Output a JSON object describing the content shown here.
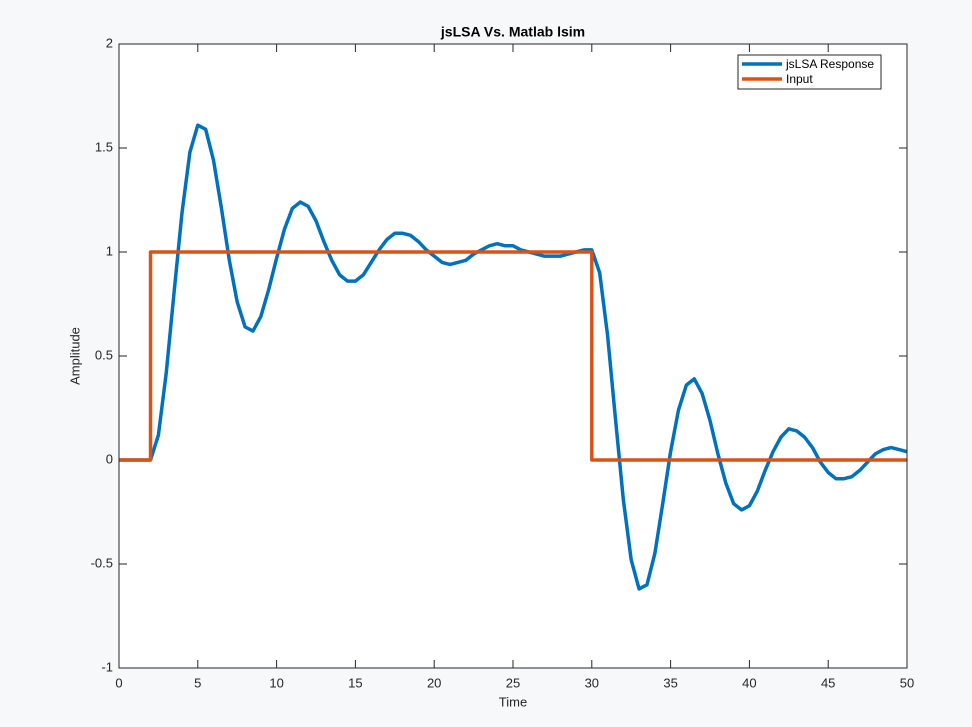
{
  "chart_data": {
    "type": "line",
    "title": "jsLSA Vs. Matlab lsim",
    "xlabel": "Time",
    "ylabel": "Amplitude",
    "xlim": [
      0,
      50
    ],
    "xticks": [
      0,
      5,
      10,
      15,
      20,
      25,
      30,
      35,
      40,
      45,
      50
    ],
    "ylim": [
      -1,
      2
    ],
    "yticks": [
      -1,
      -0.5,
      0,
      0.5,
      1,
      1.5,
      2
    ],
    "grid": false,
    "legend": "northeast",
    "series": [
      {
        "name": "jsLSA Response",
        "color": "#0072bd",
        "x": [
          0,
          0.5,
          1,
          1.5,
          2,
          2.5,
          3,
          3.5,
          4,
          4.5,
          5,
          5.5,
          6,
          6.5,
          7,
          7.5,
          8,
          8.5,
          9,
          9.5,
          10,
          10.5,
          11,
          11.5,
          12,
          12.5,
          13,
          13.5,
          14,
          14.5,
          15,
          15.5,
          16,
          16.5,
          17,
          17.5,
          18,
          18.5,
          19,
          19.5,
          20,
          20.5,
          21,
          21.5,
          22,
          22.5,
          23,
          23.5,
          24,
          24.5,
          25,
          25.5,
          26,
          26.5,
          27,
          27.5,
          28,
          28.5,
          29,
          29.5,
          30,
          30.5,
          31,
          31.5,
          32,
          32.5,
          33,
          33.5,
          34,
          34.5,
          35,
          35.5,
          36,
          36.5,
          37,
          37.5,
          38,
          38.5,
          39,
          39.5,
          40,
          40.5,
          41,
          41.5,
          42,
          42.5,
          43,
          43.5,
          44,
          44.5,
          45,
          45.5,
          46,
          46.5,
          47,
          47.5,
          48,
          48.5,
          49,
          49.5,
          50
        ],
        "values": [
          0,
          0,
          0,
          0,
          0,
          0.12,
          0.42,
          0.81,
          1.19,
          1.48,
          1.61,
          1.59,
          1.44,
          1.21,
          0.96,
          0.76,
          0.64,
          0.62,
          0.69,
          0.82,
          0.97,
          1.11,
          1.21,
          1.24,
          1.22,
          1.15,
          1.05,
          0.96,
          0.89,
          0.86,
          0.86,
          0.89,
          0.95,
          1.01,
          1.06,
          1.09,
          1.09,
          1.08,
          1.05,
          1.01,
          0.98,
          0.95,
          0.94,
          0.95,
          0.96,
          0.99,
          1.01,
          1.03,
          1.04,
          1.03,
          1.03,
          1.01,
          1.0,
          0.99,
          0.98,
          0.98,
          0.98,
          0.99,
          1.0,
          1.01,
          1.01,
          0.9,
          0.6,
          0.2,
          -0.19,
          -0.48,
          -0.62,
          -0.6,
          -0.45,
          -0.21,
          0.04,
          0.24,
          0.36,
          0.39,
          0.32,
          0.19,
          0.03,
          -0.11,
          -0.21,
          -0.24,
          -0.22,
          -0.15,
          -0.05,
          0.04,
          0.11,
          0.15,
          0.14,
          0.11,
          0.06,
          -0.01,
          -0.06,
          -0.09,
          -0.09,
          -0.08,
          -0.05,
          -0.01,
          0.03,
          0.05,
          0.06,
          0.05,
          0.04
        ]
      },
      {
        "name": "Input",
        "color": "#d95319",
        "x": [
          0,
          2,
          2,
          30,
          30,
          50
        ],
        "values": [
          0,
          0,
          1,
          1,
          0,
          0
        ]
      }
    ]
  }
}
